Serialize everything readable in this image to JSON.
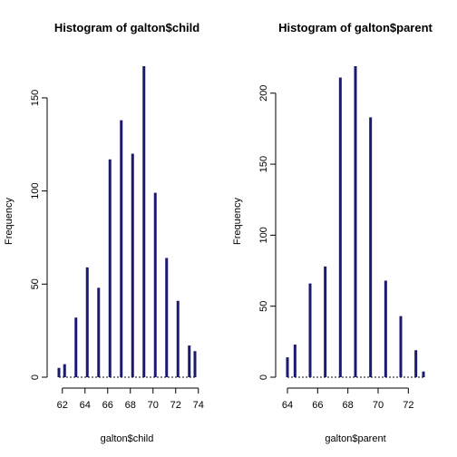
{
  "chart_data": [
    {
      "type": "bar",
      "title": "Histogram of galton$child",
      "xlabel": "galton$child",
      "ylabel": "Frequency",
      "bar_color": "#1a1a6e",
      "xlim": [
        61.7,
        73.7
      ],
      "ylim": [
        0,
        167
      ],
      "xticks": [
        "62",
        "64",
        "66",
        "68",
        "70",
        "72",
        "74"
      ],
      "yticks": [
        "0",
        "50",
        "100",
        "150"
      ],
      "x": [
        61.7,
        62.2,
        63.2,
        64.2,
        65.2,
        66.2,
        67.2,
        68.2,
        69.2,
        70.2,
        71.2,
        72.2,
        73.2,
        73.7
      ],
      "values": [
        5,
        7,
        32,
        59,
        48,
        117,
        138,
        120,
        167,
        99,
        64,
        41,
        17,
        14
      ]
    },
    {
      "type": "bar",
      "title": "Histogram of galton$parent",
      "xlabel": "galton$parent",
      "ylabel": "Frequency",
      "bar_color": "#1a1a6e",
      "xlim": [
        64.0,
        73.0
      ],
      "ylim": [
        0,
        219
      ],
      "xticks": [
        "64",
        "66",
        "68",
        "70",
        "72"
      ],
      "yticks": [
        "0",
        "50",
        "100",
        "150",
        "200"
      ],
      "x": [
        64.0,
        64.5,
        65.5,
        66.5,
        67.5,
        68.5,
        69.5,
        70.5,
        71.5,
        72.5,
        73.0
      ],
      "values": [
        14,
        23,
        66,
        78,
        211,
        219,
        183,
        68,
        43,
        19,
        4
      ]
    }
  ]
}
